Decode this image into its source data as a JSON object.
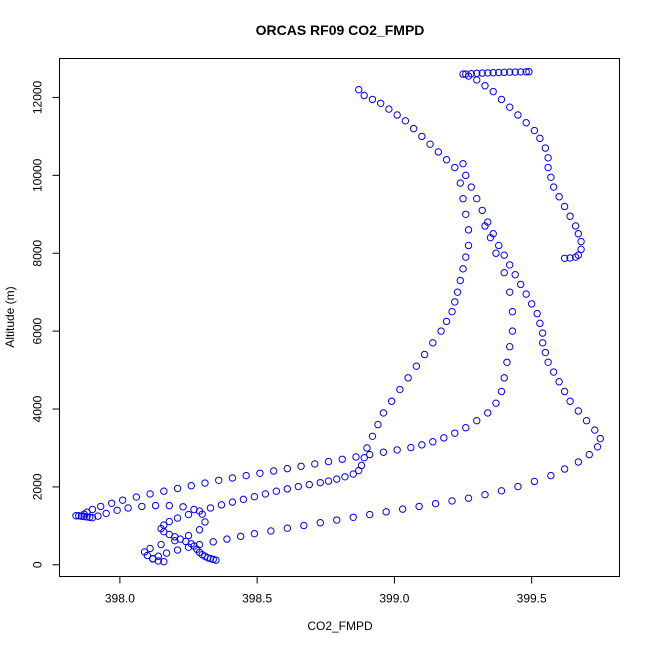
{
  "chart_data": {
    "type": "scatter",
    "title": "ORCAS RF09 CO2_FMPD",
    "xlabel": "CO2_FMPD",
    "ylabel": "Altitude (m)",
    "xlim": [
      397.78,
      399.82
    ],
    "ylim": [
      -300,
      13000
    ],
    "x_ticks": [
      398.0,
      398.5,
      399.0,
      399.5
    ],
    "x_tick_labels": [
      "398.0",
      "398.5",
      "399.0",
      "399.5"
    ],
    "y_ticks": [
      0,
      2000,
      4000,
      6000,
      8000,
      10000,
      12000
    ],
    "y_tick_labels": [
      "0",
      "2000",
      "4000",
      "6000",
      "8000",
      "10000",
      "12000"
    ],
    "point_color": "#0000ff",
    "marker": "open-circle",
    "grid": false,
    "series": [
      {
        "x": [
          398.35,
          398.34,
          398.33,
          398.32,
          398.31,
          398.3,
          398.29,
          398.28,
          398.27,
          398.26,
          398.24,
          398.22,
          398.2,
          398.18,
          398.16,
          398.15,
          398.16,
          398.18,
          398.21,
          398.25,
          398.29,
          398.33,
          398.37,
          398.41,
          398.45,
          398.49,
          398.53,
          398.57,
          398.61,
          398.65,
          398.69,
          398.73,
          398.76,
          398.79,
          398.82,
          398.85,
          398.87,
          398.88,
          398.89,
          398.9,
          398.92,
          398.94,
          398.96,
          398.99,
          399.02,
          399.05,
          399.08,
          399.11,
          399.14,
          399.17,
          399.19,
          399.21,
          399.22,
          399.23,
          399.24,
          399.25,
          399.26,
          399.27,
          399.27,
          399.26,
          399.25,
          399.24,
          399.22,
          399.19,
          399.16,
          399.13,
          399.1,
          399.07,
          399.04,
          399.01,
          398.98,
          398.95,
          398.92,
          398.89,
          398.87
        ],
        "y": [
          120,
          140,
          160,
          180,
          220,
          260,
          320,
          400,
          480,
          540,
          600,
          660,
          720,
          780,
          850,
          930,
          1020,
          1110,
          1200,
          1290,
          1380,
          1460,
          1540,
          1610,
          1680,
          1750,
          1820,
          1890,
          1950,
          2010,
          2060,
          2110,
          2150,
          2200,
          2260,
          2330,
          2420,
          2550,
          2750,
          3000,
          3300,
          3600,
          3900,
          4200,
          4500,
          4800,
          5100,
          5400,
          5700,
          6000,
          6250,
          6500,
          6750,
          7000,
          7300,
          7600,
          7900,
          8200,
          8600,
          9000,
          9400,
          9800,
          10200,
          10400,
          10600,
          10800,
          11000,
          11200,
          11400,
          11550,
          11700,
          11850,
          11950,
          12050,
          12200
        ]
      },
      {
        "x": [
          397.86,
          397.87,
          397.88,
          397.9,
          397.93,
          397.97,
          398.01,
          398.06,
          398.11,
          398.16,
          398.21,
          398.26,
          398.31,
          398.36,
          398.41,
          398.46,
          398.51,
          398.56,
          398.61,
          398.66,
          398.71,
          398.76,
          398.81,
          398.86,
          398.91,
          398.96,
          399.01,
          399.06,
          399.1,
          399.14,
          399.18,
          399.22,
          399.26,
          399.3,
          399.34,
          399.37,
          399.39,
          399.4,
          399.41,
          399.42,
          399.43,
          399.43,
          399.42,
          399.4,
          399.37,
          399.35,
          399.33
        ],
        "y": [
          1250,
          1300,
          1350,
          1420,
          1500,
          1580,
          1660,
          1740,
          1820,
          1890,
          1960,
          2030,
          2100,
          2170,
          2230,
          2290,
          2350,
          2410,
          2470,
          2530,
          2590,
          2650,
          2710,
          2770,
          2830,
          2890,
          2950,
          3010,
          3080,
          3160,
          3260,
          3380,
          3520,
          3700,
          3900,
          4150,
          4450,
          4800,
          5200,
          5600,
          6000,
          6500,
          7000,
          7500,
          8000,
          8400,
          8700
        ]
      },
      {
        "x": [
          398.12,
          398.14,
          398.17,
          398.21,
          398.25,
          398.29,
          398.34,
          398.39,
          398.44,
          398.49,
          398.55,
          398.61,
          398.67,
          398.73,
          398.79,
          398.85,
          398.91,
          398.97,
          399.03,
          399.09,
          399.15,
          399.21,
          399.27,
          399.33,
          399.39,
          399.45,
          399.51,
          399.57,
          399.62,
          399.67,
          399.71,
          399.74,
          399.75,
          399.73,
          399.7,
          399.67,
          399.64,
          399.62,
          399.6,
          399.58,
          399.56,
          399.55,
          399.54,
          399.54,
          399.53,
          399.52,
          399.5,
          399.48,
          399.46,
          399.44,
          399.42,
          399.4,
          399.38,
          399.36,
          399.34,
          399.32,
          399.3,
          399.28,
          399.26,
          399.25
        ],
        "y": [
          150,
          220,
          300,
          380,
          450,
          520,
          590,
          660,
          730,
          800,
          870,
          940,
          1010,
          1080,
          1150,
          1220,
          1290,
          1360,
          1430,
          1500,
          1570,
          1640,
          1710,
          1800,
          1900,
          2010,
          2140,
          2290,
          2460,
          2640,
          2830,
          3030,
          3240,
          3460,
          3700,
          3950,
          4200,
          4450,
          4700,
          4950,
          5200,
          5450,
          5700,
          5950,
          6200,
          6450,
          6700,
          6950,
          7200,
          7450,
          7700,
          7950,
          8200,
          8500,
          8800,
          9100,
          9400,
          9700,
          10000,
          10300
        ]
      },
      {
        "x": [
          399.25,
          399.27,
          399.3,
          399.33,
          399.36,
          399.39,
          399.42,
          399.45,
          399.48,
          399.51,
          399.53,
          399.55,
          399.56,
          399.56,
          399.57,
          399.58,
          399.6,
          399.62,
          399.64,
          399.66,
          399.67,
          399.68,
          399.68,
          399.67,
          399.66,
          399.64,
          399.62
        ],
        "y": [
          12600,
          12550,
          12450,
          12300,
          12150,
          11950,
          11750,
          11550,
          11350,
          11150,
          10950,
          10700,
          10450,
          10200,
          9950,
          9700,
          9450,
          9200,
          8950,
          8700,
          8500,
          8300,
          8100,
          7950,
          7900,
          7880,
          7870
        ]
      },
      {
        "x": [
          399.26,
          399.28,
          399.3,
          399.32,
          399.34,
          399.36,
          399.38,
          399.4,
          399.42,
          399.44,
          399.46,
          399.48,
          399.49
        ],
        "y": [
          12600,
          12610,
          12620,
          12625,
          12630,
          12635,
          12640,
          12645,
          12650,
          12652,
          12655,
          12658,
          12660
        ]
      },
      {
        "x": [
          397.84,
          397.85,
          397.86,
          397.87,
          397.88,
          397.89,
          397.9,
          397.92,
          397.95,
          397.99,
          398.03,
          398.08,
          398.13,
          398.18,
          398.23,
          398.27,
          398.3,
          398.31,
          398.29,
          398.25,
          398.2,
          398.15,
          398.11,
          398.09,
          398.1,
          398.12,
          398.14,
          398.16
        ],
        "y": [
          1260,
          1260,
          1250,
          1240,
          1230,
          1220,
          1210,
          1250,
          1320,
          1400,
          1460,
          1500,
          1520,
          1520,
          1490,
          1420,
          1300,
          1100,
          900,
          750,
          620,
          520,
          420,
          330,
          240,
          160,
          100,
          80
        ]
      }
    ]
  }
}
